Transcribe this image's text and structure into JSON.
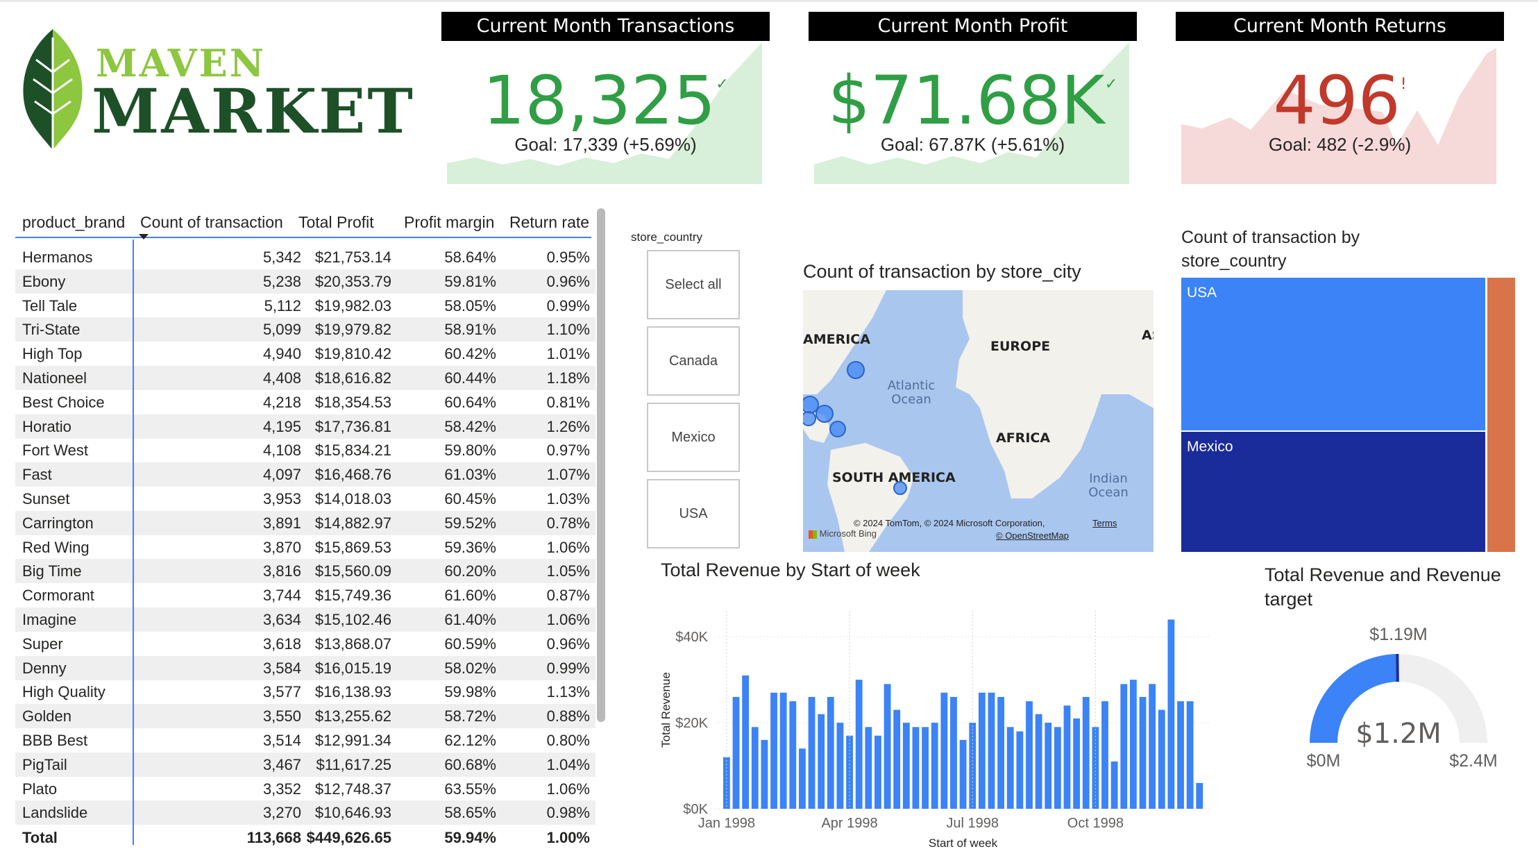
{
  "logo": {
    "line1": "MAVEN",
    "line2": "MARKET"
  },
  "colors": {
    "good": "#2f9e44",
    "bad": "#c0392b",
    "accent": "#3b83f6",
    "dark_blue": "#1a2b9a",
    "orange": "#d9734a"
  },
  "kpis": [
    {
      "title": "Current Month Transactions",
      "value": "18,325",
      "mark": "✓",
      "goal": "Goal: 17,339 (+5.69%)",
      "status": "good"
    },
    {
      "title": "Current Month Profit",
      "value": "$71.68K",
      "mark": "✓",
      "goal": "Goal: 67.87K (+5.61%)",
      "status": "good"
    },
    {
      "title": "Current Month Returns",
      "value": "496",
      "mark": "!",
      "goal": "Goal: 482 (-2.9%)",
      "status": "bad"
    }
  ],
  "table": {
    "headers": [
      "product_brand",
      "Count of transaction",
      "Total Profit",
      "Profit margin",
      "Return rate"
    ],
    "rows": [
      [
        "Hermanos",
        "5,342",
        "$21,753.14",
        "58.64%",
        "0.95%"
      ],
      [
        "Ebony",
        "5,238",
        "$20,353.79",
        "59.81%",
        "0.96%"
      ],
      [
        "Tell Tale",
        "5,112",
        "$19,982.03",
        "58.05%",
        "0.99%"
      ],
      [
        "Tri-State",
        "5,099",
        "$19,979.82",
        "58.91%",
        "1.10%"
      ],
      [
        "High Top",
        "4,940",
        "$19,810.42",
        "60.42%",
        "1.01%"
      ],
      [
        "Nationeel",
        "4,408",
        "$18,616.82",
        "60.44%",
        "1.18%"
      ],
      [
        "Best Choice",
        "4,218",
        "$18,354.53",
        "60.64%",
        "0.81%"
      ],
      [
        "Horatio",
        "4,195",
        "$17,736.81",
        "58.42%",
        "1.26%"
      ],
      [
        "Fort West",
        "4,108",
        "$15,834.21",
        "59.80%",
        "0.97%"
      ],
      [
        "Fast",
        "4,097",
        "$16,468.76",
        "61.03%",
        "1.07%"
      ],
      [
        "Sunset",
        "3,953",
        "$14,018.03",
        "60.45%",
        "1.03%"
      ],
      [
        "Carrington",
        "3,891",
        "$14,882.97",
        "59.52%",
        "0.78%"
      ],
      [
        "Red Wing",
        "3,870",
        "$15,869.53",
        "59.36%",
        "1.06%"
      ],
      [
        "Big Time",
        "3,816",
        "$15,560.09",
        "60.20%",
        "1.05%"
      ],
      [
        "Cormorant",
        "3,744",
        "$15,749.36",
        "61.60%",
        "0.87%"
      ],
      [
        "Imagine",
        "3,634",
        "$15,102.46",
        "61.40%",
        "1.06%"
      ],
      [
        "Super",
        "3,618",
        "$13,868.07",
        "60.59%",
        "0.96%"
      ],
      [
        "Denny",
        "3,584",
        "$16,015.19",
        "58.02%",
        "0.99%"
      ],
      [
        "High Quality",
        "3,577",
        "$16,138.93",
        "59.98%",
        "1.13%"
      ],
      [
        "Golden",
        "3,550",
        "$13,255.62",
        "58.72%",
        "0.88%"
      ],
      [
        "BBB Best",
        "3,514",
        "$12,991.34",
        "62.12%",
        "0.80%"
      ],
      [
        "PigTail",
        "3,467",
        "$11,617.25",
        "60.68%",
        "1.04%"
      ],
      [
        "Plato",
        "3,352",
        "$12,748.37",
        "63.55%",
        "1.06%"
      ],
      [
        "Landslide",
        "3,270",
        "$10,646.93",
        "58.65%",
        "0.98%"
      ]
    ],
    "total": [
      "Total",
      "113,668",
      "$449,626.65",
      "59.94%",
      "1.00%"
    ]
  },
  "slicer": {
    "title": "store_country",
    "options": [
      "Select all",
      "Canada",
      "Mexico",
      "USA"
    ]
  },
  "map": {
    "title": "Count of transaction by store_city",
    "labels": [
      "AMERICA",
      "EUROPE",
      "AS",
      "AFRICA",
      "SOUTH AMERICA"
    ],
    "oceans": [
      "Atlantic Ocean",
      "Indian Ocean"
    ],
    "credit": "© 2024 TomTom, © 2024 Microsoft Corporation,",
    "terms": "Terms",
    "osm": "© OpenStreetMap",
    "bing": "Microsoft Bing"
  },
  "treemap": {
    "title": "Count of transaction by store_country",
    "labels": [
      "USA",
      "Mexico"
    ]
  },
  "chart_data": [
    {
      "type": "bar",
      "title": "Total Revenue by Start of week",
      "xlabel": "Start of week",
      "ylabel": "Total Revenue",
      "ylim": [
        0,
        46000
      ],
      "yticks": [
        "$0K",
        "$20K",
        "$40K"
      ],
      "xticks": [
        "Jan 1998",
        "Apr 1998",
        "Jul 1998",
        "Oct 1998"
      ],
      "values": [
        12000,
        26000,
        31000,
        19000,
        16000,
        27000,
        27000,
        25000,
        14000,
        26000,
        22000,
        26000,
        20000,
        17000,
        30000,
        19000,
        17000,
        29000,
        23000,
        20000,
        19000,
        19000,
        20000,
        27000,
        26000,
        16000,
        20000,
        27000,
        27000,
        26000,
        19000,
        18000,
        25000,
        22000,
        20000,
        19000,
        24000,
        21000,
        26000,
        19000,
        25000,
        11000,
        29000,
        30000,
        26000,
        29000,
        23000,
        44000,
        25000,
        25000,
        6000
      ]
    },
    {
      "type": "gauge",
      "title": "Total Revenue and Revenue target",
      "value": 1.2,
      "target": 1.19,
      "min": 0,
      "max": 2.4,
      "value_label": "$1.2M",
      "target_label": "$1.19M",
      "min_label": "$0M",
      "max_label": "$2.4M"
    }
  ]
}
